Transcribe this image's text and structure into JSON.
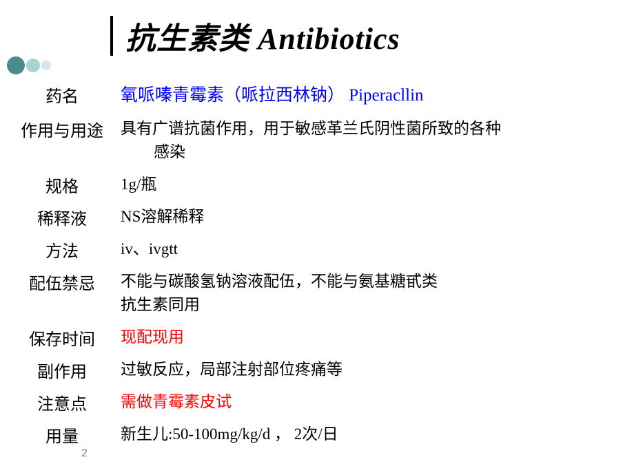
{
  "title": "抗生素类 Antibiotics",
  "decorative": {
    "dot_colors": [
      "#4a8b8b",
      "#a8d4d4",
      "#d0e8e8"
    ]
  },
  "rows": {
    "drug_name": {
      "label": "药名",
      "value": "氧哌嗪青霉素（哌拉西林钠）  Piperacllin"
    },
    "action_usage": {
      "label": "作用与用途",
      "value_line1": "具有广谱抗菌作用，用于敏感革兰氏阴性菌所致的各种",
      "value_line2": "感染"
    },
    "specification": {
      "label": "规格",
      "value": "1g/瓶"
    },
    "diluent": {
      "label": "稀释液",
      "value": "NS溶解稀释"
    },
    "method": {
      "label": "方法",
      "value": "iv、ivgtt"
    },
    "incompatibility": {
      "label": "配伍禁忌",
      "value_line1": "不能与碳酸氢钠溶液配伍，不能与氨基糖甙类",
      "value_line2": "抗生素同用"
    },
    "storage": {
      "label": "保存时间",
      "value": "现配现用"
    },
    "side_effects": {
      "label": "副作用",
      "value": "过敏反应，局部注射部位疼痛等"
    },
    "notes": {
      "label": "注意点",
      "value": "需做青霉素皮试"
    },
    "dosage": {
      "label": "用量",
      "value": "新生儿:50-100mg/kg/d   ， 2次/日"
    }
  },
  "page_number": "2",
  "colors": {
    "text": "#000000",
    "blue": "#0000ff",
    "red": "#ff0000",
    "page_num": "#808080",
    "background": "#ffffff"
  },
  "fonts": {
    "title_size": 44,
    "body_size": 24
  }
}
